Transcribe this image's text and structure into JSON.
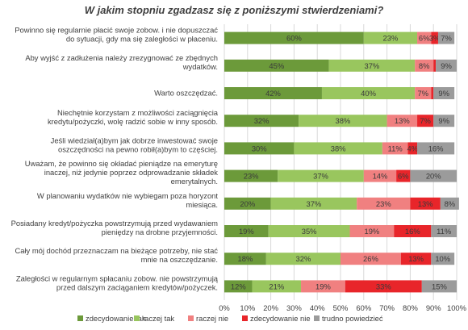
{
  "chart_data": {
    "type": "bar",
    "orientation": "horizontal",
    "stacked": true,
    "title": "W jakim stopniu zgadzasz się z poniższymi stwierdzeniami?",
    "categories": [
      [
        "Powinno się regularnie płacić swoje zobow. i nie dopuszczać",
        "do sytuacji, gdy ma się zaległości w płaceniu."
      ],
      [
        "Aby wyjść z zadłużenia należy zrezygnować ze zbędnych",
        "wydatków."
      ],
      [
        "Warto oszczędzać."
      ],
      [
        "Niechętnie korzystam z możliwości zaciągnięcia",
        "kredytu/pożyczki, wolę radzić sobie w inny sposób."
      ],
      [
        "Jeśli wiedział(a)bym jak dobrze inwestować swoje",
        "oszczędności na pewno robił(a)bym to częściej."
      ],
      [
        "Uważam, że powinno się okładać pieniądze na emeryturę",
        "inaczej, niż jedynie poprzez odprowadzanie składek",
        "emerytalnych."
      ],
      [
        "W planowaniu wydatków nie wybiegam poza horyzont",
        "miesiąca."
      ],
      [
        "Posiadany kredyt/pożyczka powstrzymują przed wydawaniem",
        "pieniędzy na drobne przyjemności."
      ],
      [
        "Cały mój dochód przeznaczam na bieżące potrzeby, nie stać",
        "mnie na oszczędzanie."
      ],
      [
        "Zaległości w regularnym spłacaniu zobow. nie powstrzymują",
        "przed dalszym zaciąganiem kredytów/pożyczek."
      ]
    ],
    "series": [
      {
        "name": "zdecydowanie tak",
        "color": "#6c9a3a",
        "values": [
          60,
          45,
          42,
          32,
          30,
          23,
          20,
          19,
          18,
          12
        ],
        "labels": [
          "60%",
          "45%",
          "42%",
          "32%",
          "30%",
          "23%",
          "20%",
          "19%",
          "18%",
          "12%"
        ]
      },
      {
        "name": "raczej tak",
        "color": "#99c65e",
        "values": [
          23,
          37,
          40,
          38,
          38,
          37,
          37,
          35,
          32,
          21
        ],
        "labels": [
          "23%",
          "37%",
          "40%",
          "38%",
          "38%",
          "37%",
          "37%",
          "35%",
          "32%",
          "21%"
        ]
      },
      {
        "name": "raczej nie",
        "color": "#f08080",
        "values": [
          6,
          8,
          7,
          13,
          11,
          14,
          23,
          19,
          26,
          19
        ],
        "labels": [
          "6%",
          "8%",
          "7%",
          "13%",
          "11%",
          "14%",
          "23%",
          "19%",
          "26%",
          "19%"
        ]
      },
      {
        "name": "zdecydowanie nie",
        "color": "#e8252a",
        "values": [
          3,
          1,
          1,
          7,
          4,
          6,
          13,
          16,
          13,
          33
        ],
        "labels": [
          "3%",
          "",
          "",
          "7%",
          "4%",
          "6%",
          "13%",
          "16%",
          "13%",
          "33%"
        ]
      },
      {
        "name": "trudno powiedzieć",
        "color": "#9b9b9b",
        "values": [
          7,
          9,
          9,
          9,
          16,
          20,
          8,
          11,
          10,
          15
        ],
        "labels": [
          "7%",
          "9%",
          "9%",
          "9%",
          "16%",
          "20%",
          "8%",
          "11%",
          "10%",
          "15%"
        ]
      }
    ],
    "xlim": [
      0,
      100
    ],
    "xticks": [
      "0%",
      "10%",
      "20%",
      "30%",
      "40%",
      "50%",
      "60%",
      "70%",
      "80%",
      "90%",
      "100%"
    ],
    "legend_position": "bottom",
    "grid": true
  }
}
